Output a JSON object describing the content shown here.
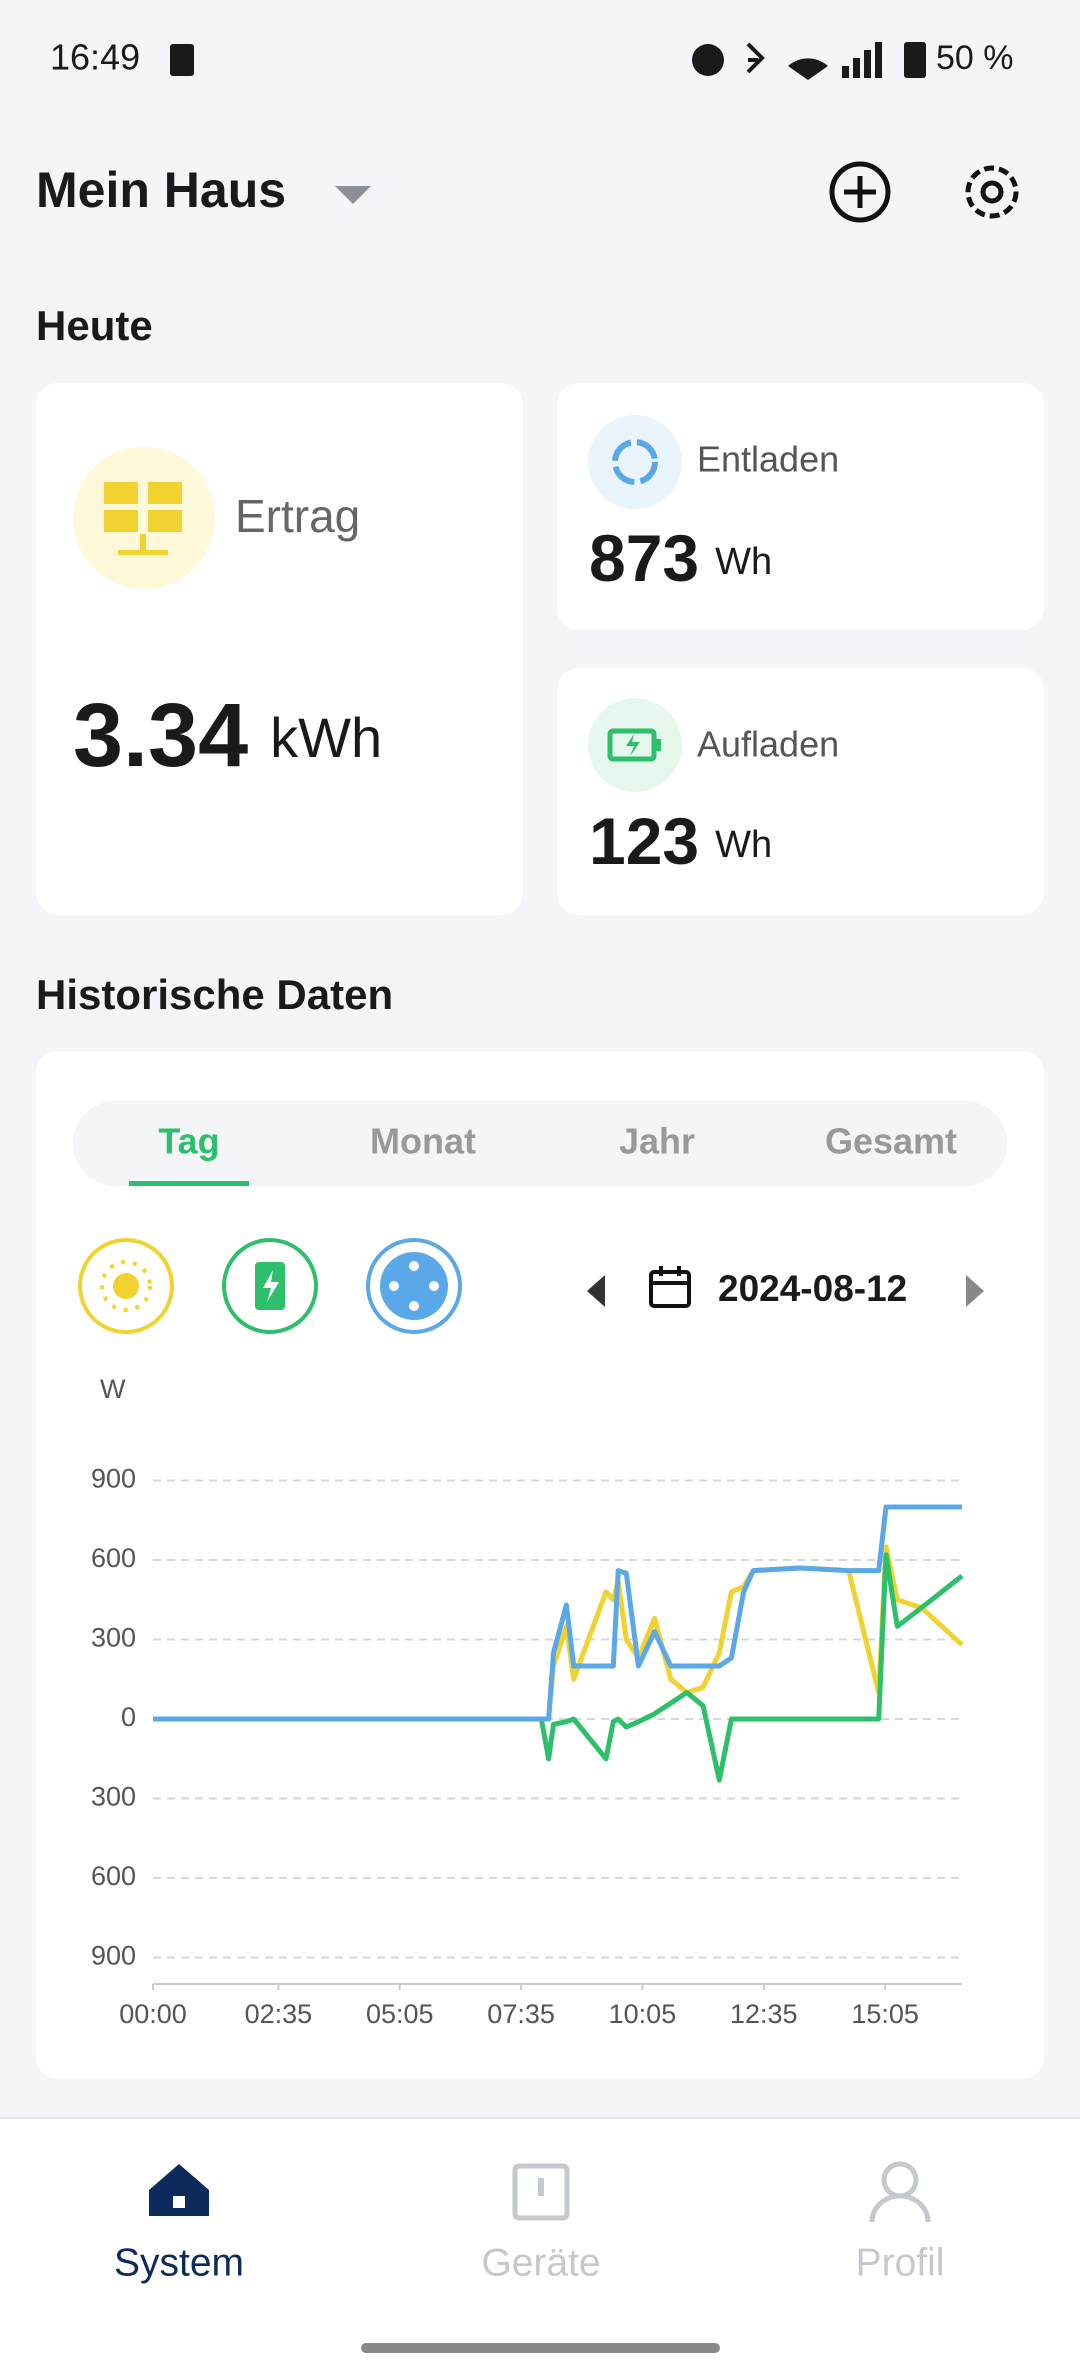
{
  "status_bar": {
    "time": "16:49",
    "battery": "50 %"
  },
  "header": {
    "title": "Mein Haus"
  },
  "today": {
    "title": "Heute",
    "yield": {
      "label": "Ertrag",
      "value": 3.34,
      "unit": "kWh"
    },
    "discharge": {
      "label": "Entladen",
      "value": 873,
      "unit": "Wh"
    },
    "charge": {
      "label": "Aufladen",
      "value": 123,
      "unit": "Wh"
    }
  },
  "history": {
    "title": "Historische Daten",
    "tabs": [
      "Tag",
      "Monat",
      "Jahr",
      "Gesamt"
    ],
    "active_tab": 0,
    "date": "2024-08-12"
  },
  "chart_data": {
    "type": "line",
    "y_label": "W",
    "x": [
      0,
      480,
      489,
      495,
      511,
      520,
      560,
      569,
      575,
      585,
      600,
      620,
      640,
      660,
      680,
      700,
      715,
      730,
      742,
      800,
      860,
      897,
      906,
      920,
      950,
      1000
    ],
    "xlim": [
      0,
      1000
    ],
    "xticks": [
      {
        "value": 0,
        "label": "00:00"
      },
      {
        "value": 155,
        "label": "02:35"
      },
      {
        "value": 305,
        "label": "05:05"
      },
      {
        "value": 455,
        "label": "07:35"
      },
      {
        "value": 605,
        "label": "10:05"
      },
      {
        "value": 755,
        "label": "12:35"
      },
      {
        "value": 905,
        "label": "15:05"
      }
    ],
    "ylim": [
      -1000,
      1000
    ],
    "yticks": [
      900,
      600,
      300,
      0,
      {
        "value": -300,
        "label": "300"
      },
      {
        "value": -600,
        "label": "600"
      },
      {
        "value": -900,
        "label": "900"
      }
    ],
    "grid": true,
    "series": [
      {
        "color": "#f2d230",
        "values": [
          0,
          0,
          0,
          200,
          350,
          150,
          480,
          450,
          520,
          300,
          230,
          380,
          150,
          100,
          120,
          250,
          480,
          500,
          560,
          570,
          560,
          100,
          650,
          450,
          420,
          280
        ]
      },
      {
        "color": "#2dbf6a",
        "values": [
          0,
          0,
          -150,
          -20,
          -10,
          0,
          -150,
          -10,
          0,
          -30,
          -10,
          20,
          60,
          100,
          50,
          -230,
          0,
          0,
          0,
          0,
          0,
          0,
          620,
          350,
          420,
          540
        ]
      },
      {
        "color": "#5aa8e8",
        "values": [
          0,
          0,
          0,
          250,
          430,
          200,
          200,
          200,
          560,
          550,
          200,
          330,
          200,
          200,
          200,
          200,
          230,
          480,
          560,
          570,
          560,
          560,
          800,
          800,
          800,
          800
        ]
      }
    ]
  },
  "nav": {
    "items": [
      "System",
      "Geräte",
      "Profil"
    ],
    "active": 0
  }
}
